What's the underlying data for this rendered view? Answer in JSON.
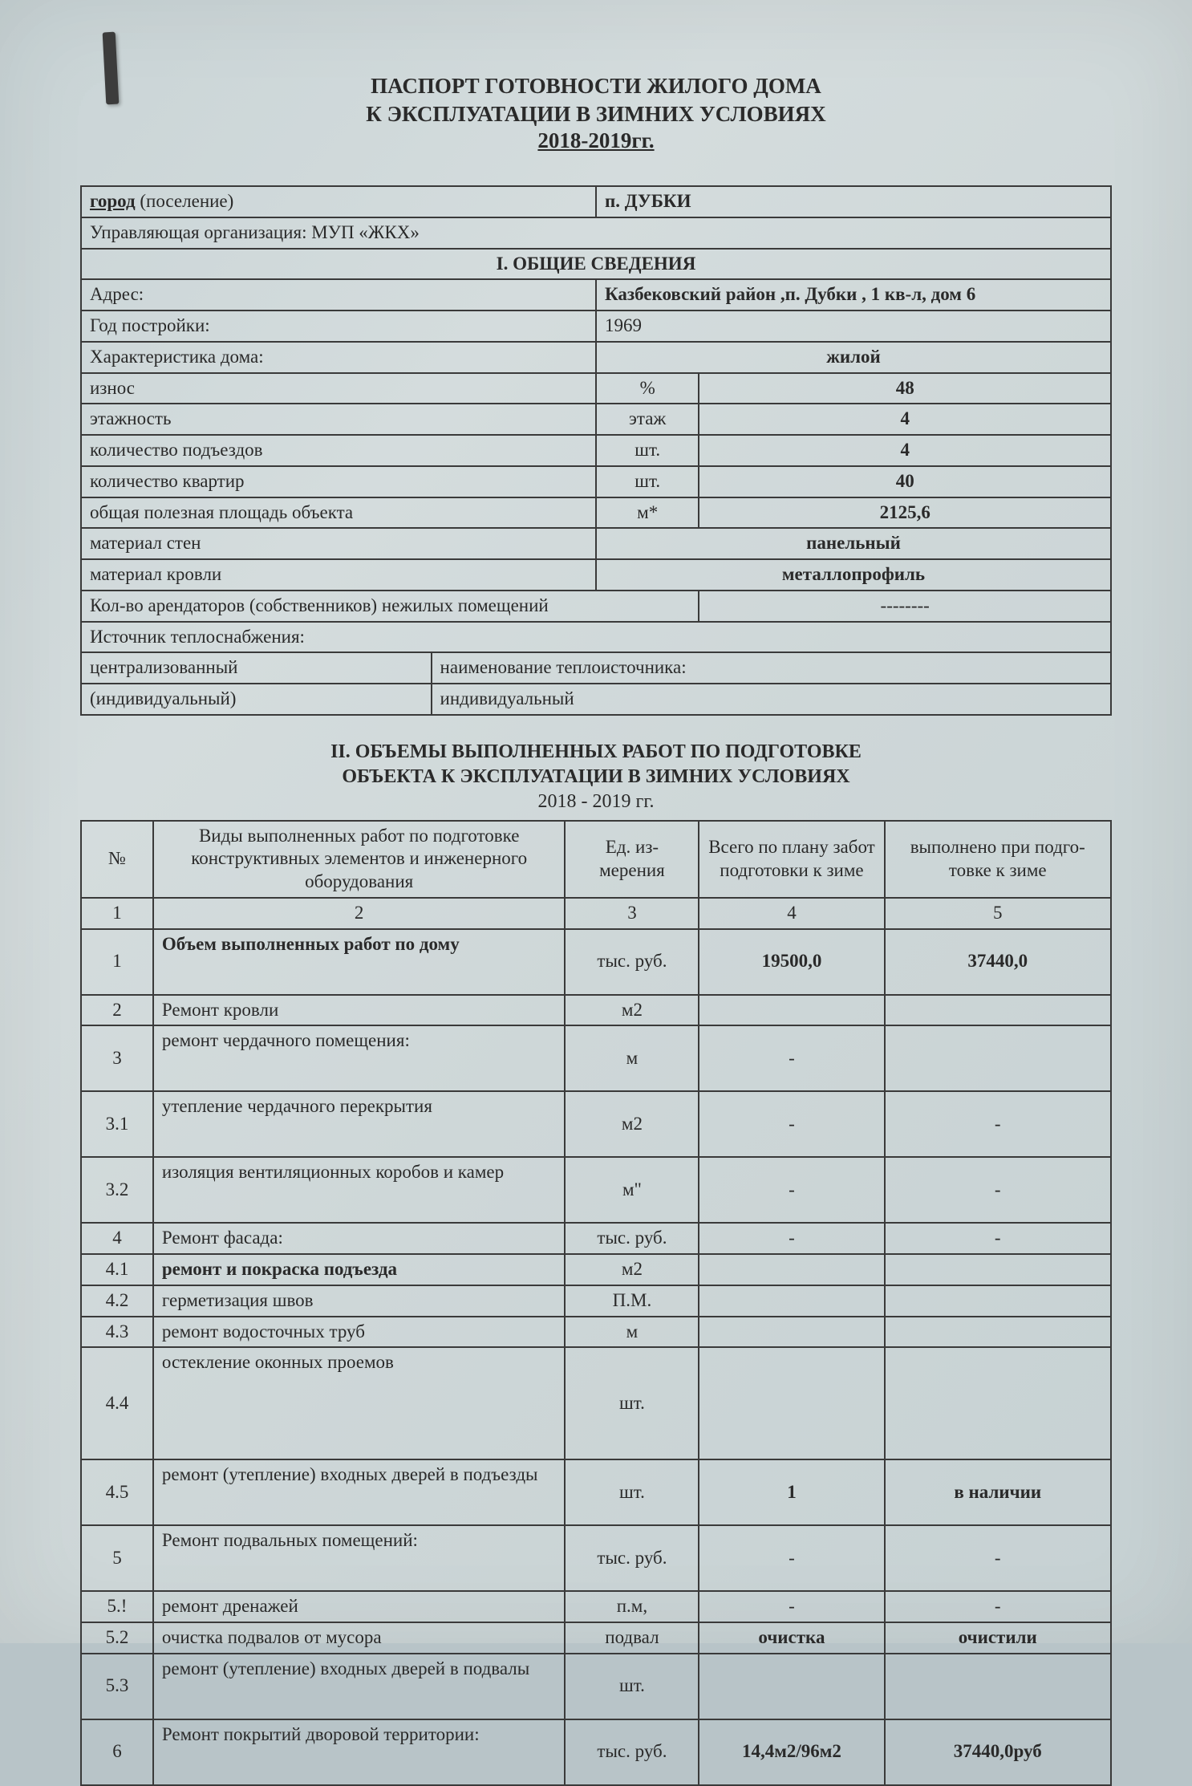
{
  "title": {
    "l1": "ПАСПОРТ ГОТОВНОСТИ ЖИЛОГО ДОМА",
    "l2": "К ЭКСПЛУАТАЦИИ В ЗИМНИХ УСЛОВИЯХ",
    "years": "2018-2019гг."
  },
  "header_rows": {
    "city_label": "город",
    "city_paren": " (поселение)",
    "city_value": "п. ДУБКИ",
    "org": "Управляющая организация: МУП «ЖКХ»",
    "section1": "I. ОБЩИЕ СВЕДЕНИЯ"
  },
  "info": {
    "address_l": "Адрес:",
    "address_v": "Казбековский район ,п. Дубки , 1 кв-л, дом 6",
    "year_l": "Год постройки:",
    "year_v": "1969",
    "char_l": "Характеристика дома:",
    "char_v": "жилой",
    "wear_l": "износ",
    "wear_u": "%",
    "wear_v": "48",
    "floors_l": "этажность",
    "floors_u": "этаж",
    "floors_v": "4",
    "entr_l": "количество подъездов",
    "entr_u": "шт.",
    "entr_v": "4",
    "apts_l": "количество квартир",
    "apts_u": "шт.",
    "apts_v": "40",
    "area_l": "общая полезная площадь объекта",
    "area_u": "м*",
    "area_v": "2125,6",
    "walls_l": "материал стен",
    "walls_v": "панельный",
    "roof_l": "материал кровли",
    "roof_v": "металлопрофиль",
    "tenants_l": "Кол-во арендаторов (собственников) нежилых помещений",
    "tenants_v": "--------",
    "heat_src_l": "Источник теплоснабжения:",
    "heat_c_l": "централизованный",
    "heat_c_v": "наименование теплоисточника:",
    "heat_i_l": "(индивидуальный)",
    "heat_i_v": "индивидуальный"
  },
  "section2": {
    "l1": "II. ОБЪЕМЫ ВЫПОЛНЕННЫХ РАБОТ ПО ПОДГОТОВКЕ",
    "l2": "ОБЪЕКТА К ЭКСПЛУАТАЦИИ В ЗИМНИХ УСЛОВИЯХ",
    "l3": "2018 - 2019 гг."
  },
  "t2head": {
    "num": "№",
    "work": "Виды выполненных работ по подготовке конструктивных элементов и инженерного оборудования",
    "unit": "Ед. из-мерения",
    "plan": "Всего по плану забот подготовки к зиме",
    "done": "выполнено при подго-товке к зиме",
    "r": [
      "1",
      "2",
      "3",
      "4",
      "5"
    ]
  },
  "rows": [
    {
      "n": "1",
      "w": "Объем выполненных работ по дому",
      "u": "тыс. руб.",
      "p": "19500,0",
      "d": "37440,0",
      "tall": true,
      "bw": true,
      "bp": true,
      "bd": true
    },
    {
      "n": "2",
      "w": "Ремонт кровли",
      "u": "м2",
      "p": "",
      "d": ""
    },
    {
      "n": "3",
      "w": "ремонт чердачного помещения:",
      "u": "м",
      "p": "-",
      "d": "",
      "tall": true
    },
    {
      "n": "3.1",
      "w": "утепление чердачного перекрытия",
      "u": "м2",
      "p": "-",
      "d": "-",
      "tall": true
    },
    {
      "n": "3.2",
      "w": "изоляция вентиляционных коробов и камер",
      "u": "м\"",
      "p": "-",
      "d": "-",
      "tall": true
    },
    {
      "n": "4",
      "w": "Ремонт фасада:",
      "u": "тыс. руб.",
      "p": "-",
      "d": "-"
    },
    {
      "n": "4.1",
      "w": "ремонт и покраска подъезда",
      "u": "м2",
      "p": "",
      "d": "",
      "bw": true
    },
    {
      "n": "4.2",
      "w": "герметизация швов",
      "u": "П.М.",
      "p": "",
      "d": ""
    },
    {
      "n": "4.3",
      "w": "ремонт водосточных труб",
      "u": "м",
      "p": "",
      "d": ""
    },
    {
      "n": "4.4",
      "w": "остекление оконных проемов",
      "u": "шт.",
      "p": "",
      "d": "",
      "xtall": true
    },
    {
      "n": "4.5",
      "w": "ремонт (утепление) входных дверей в подъезды",
      "u": "шт.",
      "p": "1",
      "d": "в наличии",
      "tall": true,
      "bp": true,
      "bd": true
    },
    {
      "n": "5",
      "w": "Ремонт подвальных помещений:",
      "u": "тыс. руб.",
      "p": "-",
      "d": "-",
      "tall": true
    },
    {
      "n": "5.!",
      "w": "ремонт дренажей",
      "u": "п.м,",
      "p": "-",
      "d": "-"
    },
    {
      "n": "5.2",
      "w": "очистка подвалов от мусора",
      "u": "подвал",
      "p": "очистка",
      "d": "очистили",
      "bp": true,
      "bd": true
    },
    {
      "n": "5.3",
      "w": "ремонт (утепление) входных дверей в подвалы",
      "u": "шт.",
      "p": "",
      "d": "",
      "tall": true
    },
    {
      "n": "6",
      "w": "Ремонт покрытий дворовой территории:",
      "u": "тыс. руб.",
      "p": "14,4м2/96м2",
      "d": "37440,0руб",
      "tall": true,
      "bp": true,
      "bd": true
    }
  ]
}
